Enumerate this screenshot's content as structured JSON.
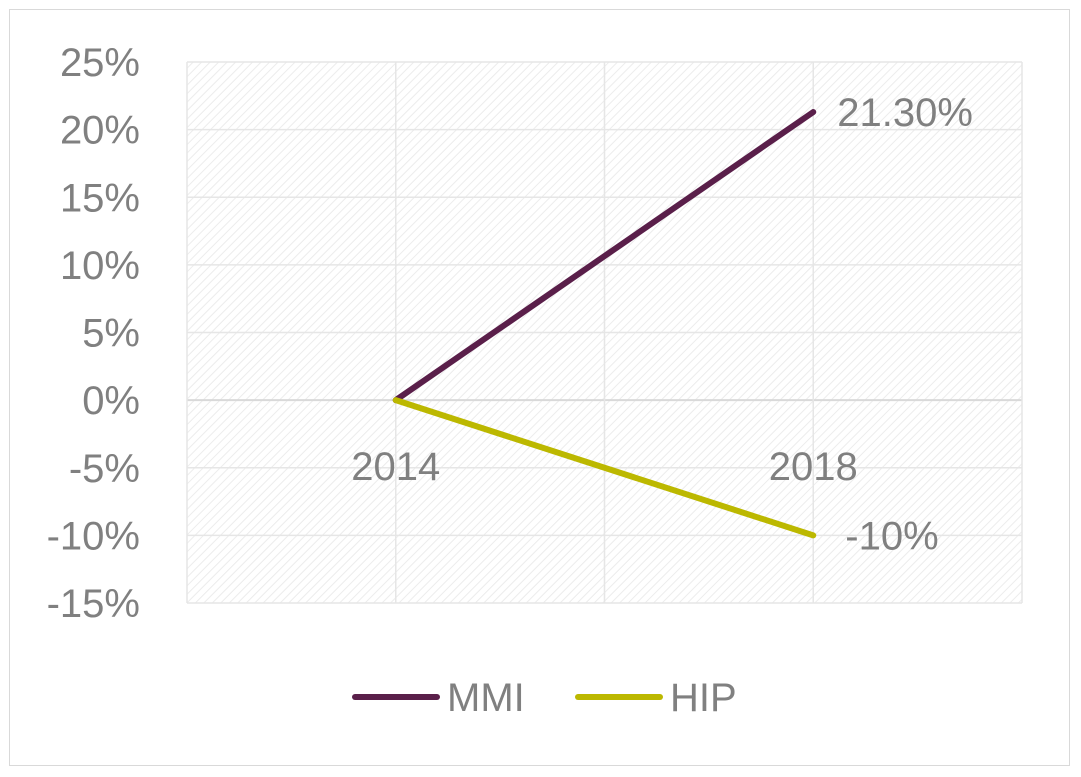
{
  "chart_data": {
    "type": "line",
    "title": "",
    "xlabel": "",
    "ylabel": "",
    "x": [
      "2014",
      "2018"
    ],
    "y_ticks": [
      "25%",
      "20%",
      "15%",
      "10%",
      "5%",
      "0%",
      "-5%",
      "-10%",
      "-15%"
    ],
    "ylim": [
      -15,
      25
    ],
    "y_unit": "percent",
    "grid": true,
    "legend_position": "bottom",
    "series": [
      {
        "name": "MMI",
        "color": "#5a1f4a",
        "values": [
          0,
          21.3
        ],
        "end_label": "21.30%"
      },
      {
        "name": "HIP",
        "color": "#bcb800",
        "values": [
          0,
          -10
        ],
        "end_label": "-10%"
      }
    ]
  }
}
